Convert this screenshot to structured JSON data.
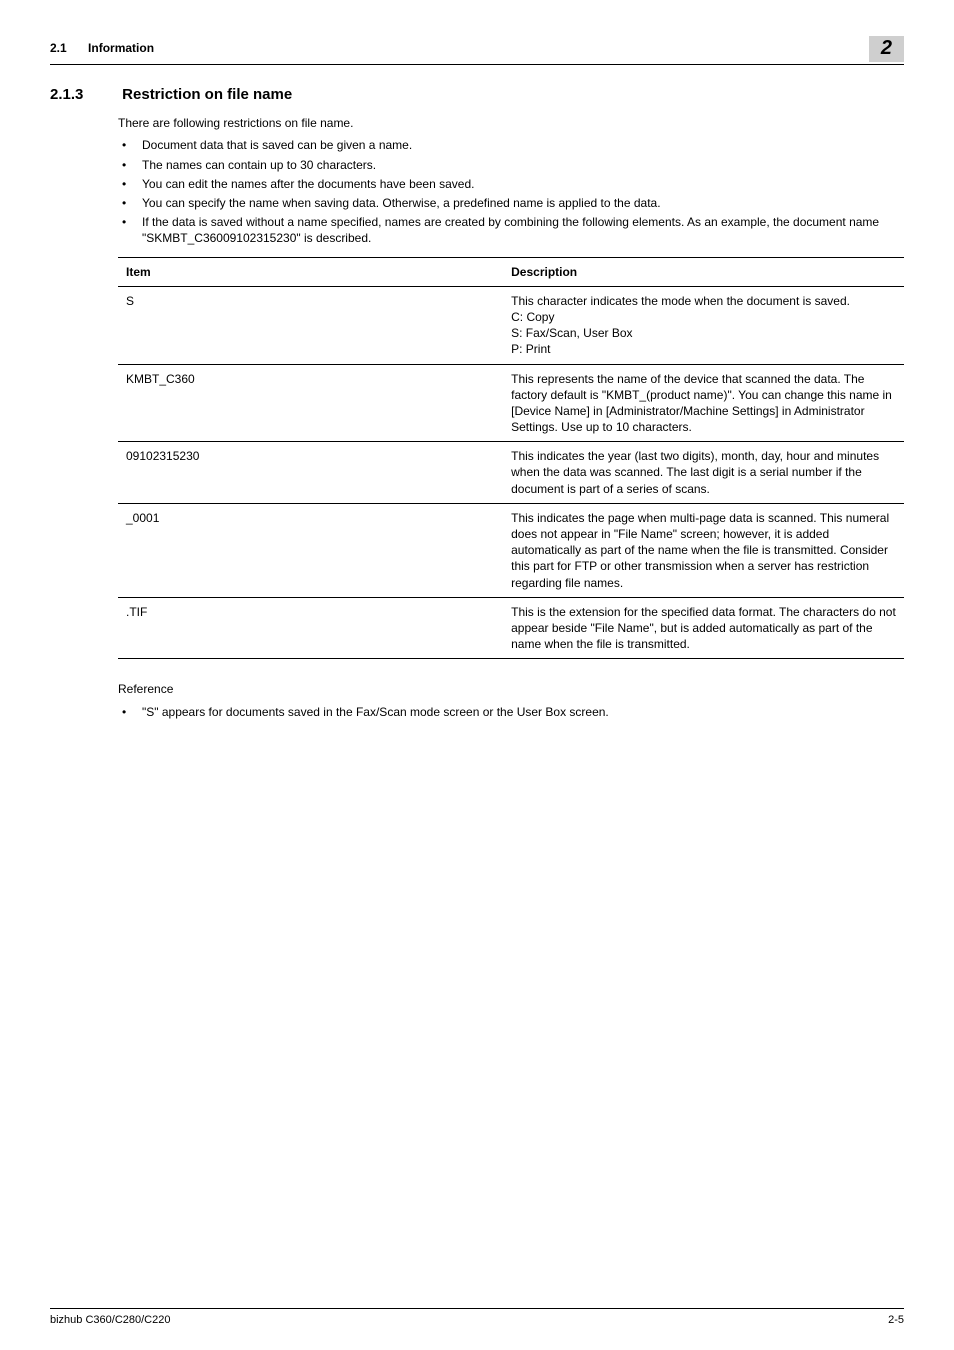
{
  "header": {
    "section_number": "2.1",
    "section_title": "Information",
    "chapter_badge": "2"
  },
  "heading": {
    "number": "2.1.3",
    "title": "Restriction on file name"
  },
  "intro": "There are following restrictions on file name.",
  "bullets": [
    "Document data that is saved can be given a name.",
    "The names can contain up to 30 characters.",
    "You can edit the names after the documents have been saved.",
    "You can specify the name when saving data. Otherwise, a predefined name is applied to the data.",
    "If the data is saved without a name specified, names are created by combining the following elements. As an example, the document name \"SKMBT_C36009102315230\" is described."
  ],
  "table": {
    "columns": [
      "Item",
      "Description"
    ],
    "rows": [
      [
        "S",
        "This character indicates the mode when the document is saved.\nC: Copy\nS: Fax/Scan, User Box\nP: Print"
      ],
      [
        "KMBT_C360",
        "This represents the name of the device that scanned the data. The factory default is \"KMBT_(product name)\". You can change this name in [Device Name] in [Administrator/Machine Settings] in Administrator Settings. Use up to 10 characters."
      ],
      [
        "09102315230",
        "This indicates the year (last two digits), month, day, hour and minutes when the data was scanned. The last digit is a serial number if the document is part of a series of scans."
      ],
      [
        "_0001",
        "This indicates the page when multi-page data is scanned. This numeral does not appear in \"File Name\" screen; however, it is added automatically as part of the name when the file is transmitted. Consider this part for FTP or other transmission when a server has restriction regarding file names."
      ],
      [
        ".TIF",
        "This is the extension for the specified data format. The characters do not appear beside \"File Name\", but is added automatically as part of the name when the file is transmitted."
      ]
    ]
  },
  "reference": {
    "label": "Reference",
    "items": [
      "\"S\" appears for documents saved in the Fax/Scan mode screen or the User Box screen."
    ]
  },
  "footer": {
    "product": "bizhub C360/C280/C220",
    "page": "2-5"
  }
}
